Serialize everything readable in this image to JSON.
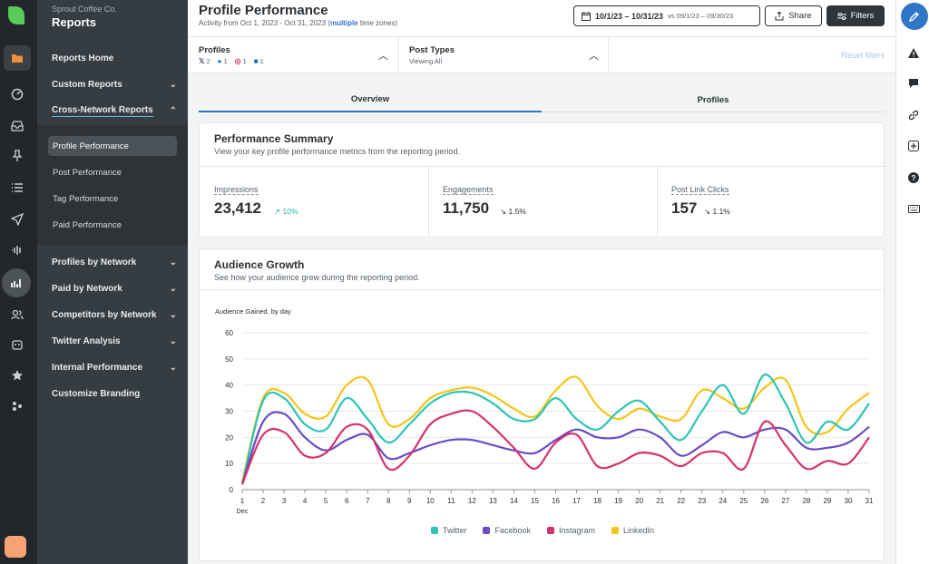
{
  "sidebar": {
    "org": "Sprout Coffee Co.",
    "title": "Reports",
    "items": [
      {
        "label": "Reports Home",
        "chevron": ""
      },
      {
        "label": "Custom Reports",
        "chevron": "⌄"
      },
      {
        "label": "Cross-Network Reports",
        "chevron": "⌃"
      },
      {
        "label": "Profiles by Network",
        "chevron": "⌄"
      },
      {
        "label": "Paid by Network",
        "chevron": "⌄"
      },
      {
        "label": "Competitors by Network",
        "chevron": "⌄"
      },
      {
        "label": "Twitter Analysis",
        "chevron": "⌄"
      },
      {
        "label": "Internal Performance",
        "chevron": "⌄"
      },
      {
        "label": "Customize Branding",
        "chevron": ""
      }
    ],
    "sub_items": [
      "Profile Performance",
      "Post Performance",
      "Tag Performance",
      "Paid Performance"
    ]
  },
  "header": {
    "title": "Profile Performance",
    "activity_prefix": "Activity from Oct 1, 2023 - Oct 31, 2023 (",
    "activity_link": "multiple",
    "activity_suffix": " time zones)",
    "date_range": "10/1/23 – 10/31/23",
    "compare_range": "vs 09/1/23 – 09/30/23",
    "share_label": "Share",
    "filters_label": "Filters"
  },
  "filters": {
    "profiles_label": "Profiles",
    "profiles_counts": {
      "x": "2",
      "facebook": "1",
      "instagram": "1",
      "linkedin": "1"
    },
    "post_types_label": "Post Types",
    "post_types_value": "Viewing All",
    "reset_label": "Reset filters"
  },
  "tabs": [
    "Overview",
    "Profiles"
  ],
  "summary": {
    "title": "Performance Summary",
    "subtitle": "View your key profile performance metrics from the reporting period.",
    "metrics": [
      {
        "label": "Impressions",
        "value": "23,412",
        "delta": "↗ 10%"
      },
      {
        "label": "Engagements",
        "value": "11,750",
        "delta": "↘ 1.5%"
      },
      {
        "label": "Post Link Clicks",
        "value": "157",
        "delta": "↘ 1.1%"
      }
    ]
  },
  "growth": {
    "title": "Audience Growth",
    "subtitle": "See how your audience grew during the reporting period.",
    "chart_title": "Audience Gained, by day",
    "month_label": "Dec"
  },
  "chart_data": {
    "type": "line",
    "title": "Audience Gained, by day",
    "xlabel": "Dec",
    "ylabel": "",
    "x": [
      1,
      2,
      3,
      4,
      5,
      6,
      7,
      8,
      9,
      10,
      11,
      12,
      13,
      14,
      15,
      16,
      17,
      18,
      19,
      20,
      21,
      22,
      23,
      24,
      25,
      26,
      27,
      28,
      29,
      30,
      31
    ],
    "ylim": [
      0,
      60
    ],
    "yticks": [
      0,
      10,
      20,
      30,
      40,
      50,
      60
    ],
    "grid": true,
    "legend": "bottom",
    "series": [
      {
        "name": "Twitter",
        "color": "#2ec4b6",
        "values": [
          2,
          34,
          35,
          25,
          23,
          35,
          27,
          18,
          25,
          33,
          37,
          37,
          33,
          27,
          27,
          35,
          27,
          23,
          30,
          34,
          26,
          19,
          30,
          40,
          29,
          44,
          33,
          18,
          26,
          23,
          33
        ]
      },
      {
        "name": "Facebook",
        "color": "#6a4bc4",
        "values": [
          2,
          26,
          29,
          20,
          15,
          19,
          21,
          12,
          14,
          17,
          19,
          19,
          17,
          15,
          14,
          19,
          23,
          20,
          20,
          23,
          20,
          13,
          17,
          22,
          20,
          23,
          23,
          16,
          16,
          18,
          24
        ]
      },
      {
        "name": "Instagram",
        "color": "#d4326e",
        "values": [
          2,
          21,
          22,
          13,
          14,
          24,
          23,
          8,
          13,
          25,
          29,
          30,
          24,
          16,
          8,
          18,
          21,
          9,
          10,
          14,
          13,
          9,
          14,
          14,
          8,
          26,
          17,
          8,
          11,
          10,
          20
        ]
      },
      {
        "name": "LinkedIn",
        "color": "#f5c518",
        "values": [
          3,
          35,
          37,
          29,
          28,
          40,
          42,
          25,
          27,
          35,
          38,
          39,
          36,
          31,
          28,
          38,
          43,
          32,
          27,
          31,
          28,
          27,
          38,
          35,
          31,
          39,
          42,
          24,
          22,
          31,
          37
        ]
      }
    ]
  },
  "colors": {
    "accent": "#2f77c6",
    "sidebar": "#363d42",
    "rail": "#22272b",
    "brand_green": "#59cb59"
  }
}
